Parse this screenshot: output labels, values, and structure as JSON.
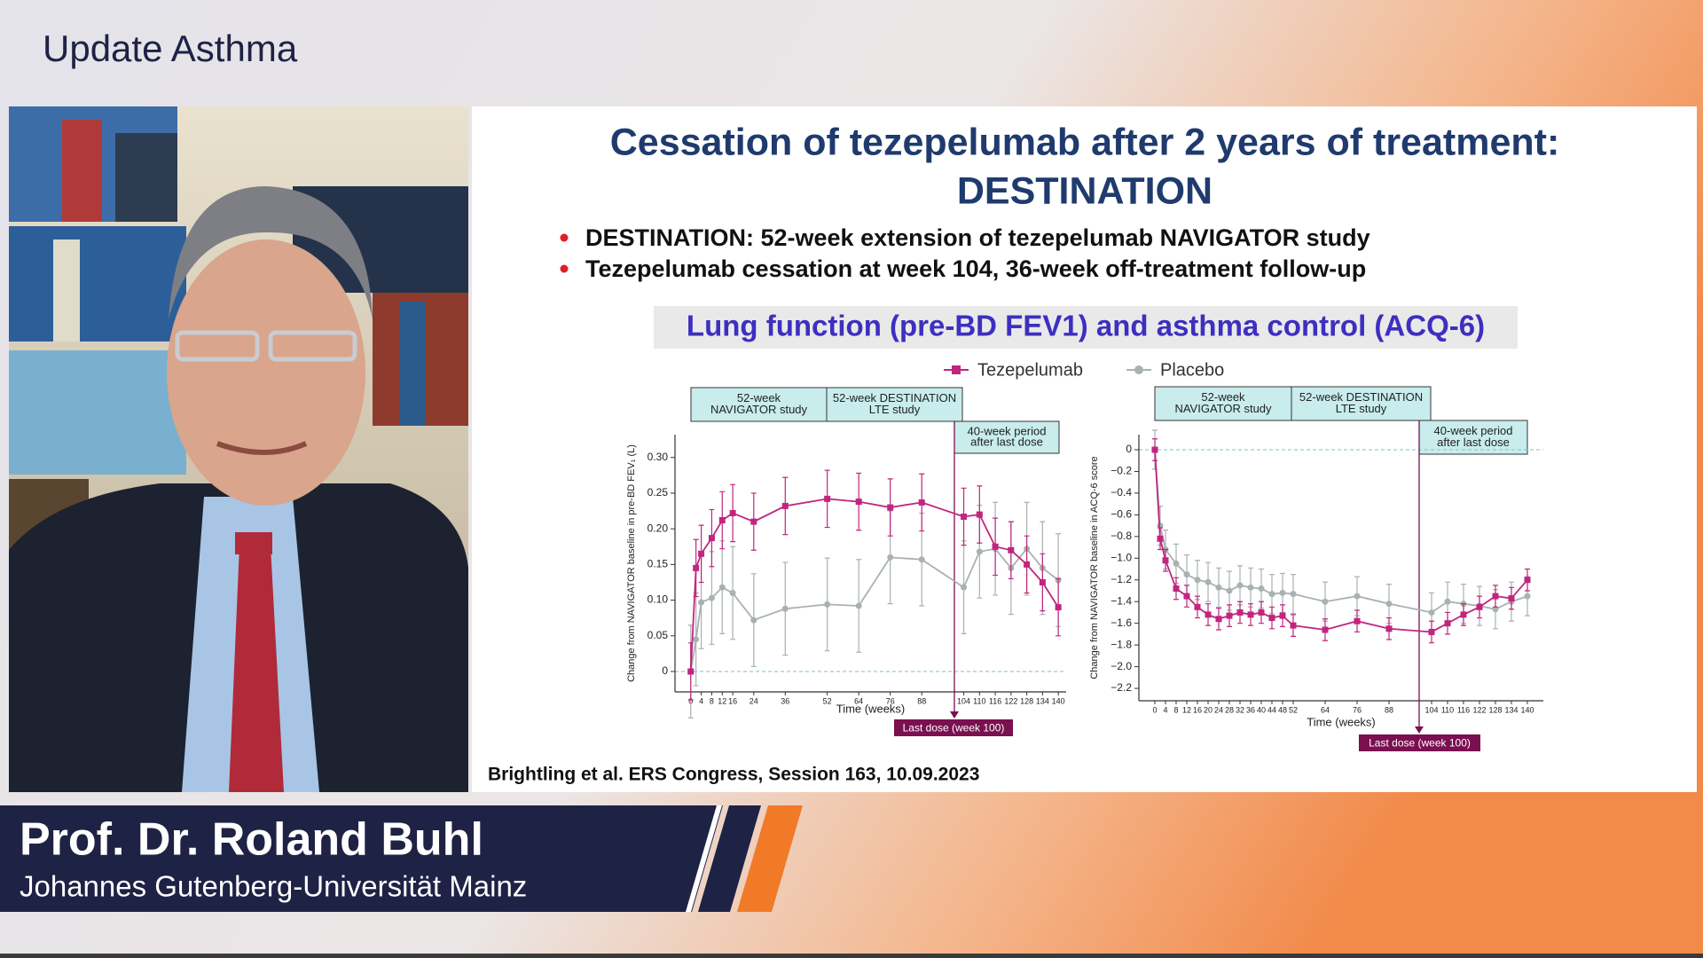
{
  "header": {
    "title": "Update Asthma"
  },
  "speaker": {
    "name": "Prof. Dr. Roland Buhl",
    "affiliation": "Johannes Gutenberg-Universität Mainz"
  },
  "slide": {
    "title": [
      "Cessation of tezepelumab after 2 years of treatment:",
      "DESTINATION"
    ],
    "bullets": [
      "DESTINATION: 52-week extension of tezepelumab NAVIGATOR study",
      "Tezepelumab cessation at week 104, 36-week off-treatment follow-up"
    ],
    "subtitle": "Lung function (pre-BD FEV1) and asthma control (ACQ-6)",
    "citation": "Brightling et al. ERS Congress, Session 163, 10.09.2023"
  },
  "chart_data": [
    {
      "type": "line",
      "y_label": "Change from NAVIGATOR baseline in pre-BD FEV₁ (L)",
      "x_label": "Time (weeks)",
      "period_labels": [
        [
          "52-week",
          "NAVIGATOR study"
        ],
        [
          "52-week DESTINATION",
          "LTE study"
        ],
        [
          "40-week period",
          "after last dose"
        ]
      ],
      "annotation": "Last dose (week 100)",
      "x": [
        0,
        2,
        4,
        8,
        12,
        16,
        24,
        36,
        52,
        64,
        76,
        88,
        104,
        110,
        116,
        122,
        128,
        134,
        140
      ],
      "series": [
        {
          "name": "Tezepelumab",
          "color": "#c0267e",
          "marker": "square",
          "error": 0.04,
          "values": [
            0,
            0.145,
            0.165,
            0.187,
            0.212,
            0.222,
            0.21,
            0.232,
            0.242,
            0.238,
            0.23,
            0.237,
            0.217,
            0.22,
            0.175,
            0.17,
            0.15,
            0.125,
            0.09
          ]
        },
        {
          "name": "Placebo",
          "color": "#a9b1b1",
          "marker": "circle",
          "error": 0.065,
          "values": [
            0,
            0.045,
            0.097,
            0.103,
            0.118,
            0.11,
            0.072,
            0.088,
            0.094,
            0.092,
            0.16,
            0.157,
            0.118,
            0.168,
            0.172,
            0.145,
            0.172,
            0.145,
            0.128
          ]
        }
      ],
      "xlim": [
        -6,
        143
      ],
      "ylim": [
        -0.0286,
        0.332
      ],
      "xticks": [
        0,
        4,
        8,
        12,
        16,
        24,
        36,
        52,
        64,
        76,
        88,
        104,
        110,
        116,
        122,
        128,
        134,
        140
      ],
      "yticks": [
        0,
        0.05,
        {
          "value": 0.1,
          "label": "0.10"
        },
        0.15,
        {
          "value": 0.2,
          "label": "0.20"
        },
        0.25,
        {
          "value": 0.3,
          "label": "0.30"
        }
      ]
    },
    {
      "type": "line",
      "y_label": "Change from NAVIGATOR baseline in ACQ-6 score",
      "x_label": "Time (weeks)",
      "period_labels": [
        [
          "52-week",
          "NAVIGATOR study"
        ],
        [
          "52-week DESTINATION",
          "LTE study"
        ],
        [
          "40-week period",
          "after last dose"
        ]
      ],
      "annotation": "Last dose (week 100)",
      "x": [
        0,
        2,
        4,
        8,
        12,
        16,
        20,
        24,
        28,
        32,
        36,
        40,
        44,
        48,
        52,
        64,
        76,
        88,
        104,
        110,
        116,
        122,
        128,
        134,
        140
      ],
      "series": [
        {
          "name": "Tezepelumab",
          "color": "#c0267e",
          "marker": "square",
          "error": 0.1,
          "values": [
            0,
            -0.82,
            -1.02,
            -1.28,
            -1.35,
            -1.45,
            -1.52,
            -1.56,
            -1.53,
            -1.5,
            -1.52,
            -1.5,
            -1.55,
            -1.53,
            -1.62,
            -1.66,
            -1.58,
            -1.65,
            -1.68,
            -1.6,
            -1.52,
            -1.45,
            -1.35,
            -1.37,
            -1.2
          ]
        },
        {
          "name": "Placebo",
          "color": "#a9b1b1",
          "marker": "circle",
          "error": 0.18,
          "values": [
            0,
            -0.7,
            -0.92,
            -1.05,
            -1.15,
            -1.2,
            -1.22,
            -1.27,
            -1.3,
            -1.25,
            -1.27,
            -1.28,
            -1.33,
            -1.32,
            -1.33,
            -1.4,
            -1.35,
            -1.42,
            -1.5,
            -1.4,
            -1.42,
            -1.44,
            -1.47,
            -1.4,
            -1.35
          ]
        }
      ],
      "xlim": [
        -6,
        146
      ],
      "ylim": [
        -2.314,
        0.139
      ],
      "xticks": [
        0,
        4,
        8,
        12,
        16,
        20,
        24,
        28,
        32,
        36,
        40,
        44,
        48,
        52,
        64,
        76,
        88,
        104,
        110,
        116,
        122,
        128,
        134,
        140
      ],
      "yticks": [
        0,
        {
          "value": -0.2,
          "label": "−0.2"
        },
        {
          "value": -0.4,
          "label": "−0.4"
        },
        {
          "value": -0.6,
          "label": "−0.6"
        },
        {
          "value": -0.8,
          "label": "−0.8"
        },
        {
          "value": -1.0,
          "label": "−1.0"
        },
        {
          "value": -1.2,
          "label": "−1.2"
        },
        {
          "value": -1.4,
          "label": "−1.4"
        },
        {
          "value": -1.6,
          "label": "−1.6"
        },
        {
          "value": -1.8,
          "label": "−1.8"
        },
        {
          "value": -2.0,
          "label": "−2.0"
        },
        {
          "value": -2.2,
          "label": "−2.2"
        }
      ]
    }
  ]
}
